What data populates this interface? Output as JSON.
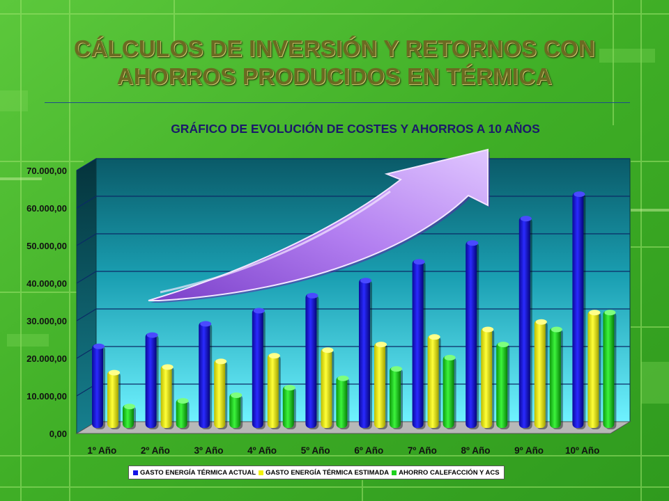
{
  "slide": {
    "title_line1": "CÁLCULOS DE INVERSIÓN Y RETORNOS CON",
    "title_line2": "AHORROS PRODUCIDOS EN TÉRMICA"
  },
  "chart_data": {
    "type": "bar",
    "title": "GRÁFICO DE EVOLUCIÓN DE COSTES Y AHORROS A 10 AÑOS",
    "categories": [
      "1º Año",
      "2º Año",
      "3º Año",
      "4º Año",
      "5º Año",
      "6º Año",
      "7º Año",
      "8º Año",
      "9º Año",
      "10º Año"
    ],
    "y_ticks": [
      "0,00",
      "10.000,00",
      "20.000,00",
      "30.000,00",
      "40.000,00",
      "50.000,00",
      "60.000,00",
      "70.000,00"
    ],
    "ylim": [
      0,
      70000
    ],
    "grid": true,
    "legend_position": "bottom",
    "series": [
      {
        "name": "GASTO ENERGÍA TÉRMICA ACTUAL",
        "color": "#1414e6",
        "values": [
          23000,
          26000,
          29000,
          32500,
          36500,
          40500,
          45500,
          50500,
          57000,
          63500
        ]
      },
      {
        "name": "GASTO ENERGÍA TÉRMICA ESTIMADA",
        "color": "#f2f20c",
        "values": [
          16000,
          17500,
          19000,
          20500,
          22000,
          23500,
          25500,
          27500,
          29500,
          32000
        ]
      },
      {
        "name": "AHORRO CALEFACCIÓN Y ACS",
        "color": "#1ed21e",
        "values": [
          7000,
          8500,
          10000,
          12000,
          14500,
          17000,
          20000,
          23500,
          27500,
          32000
        ]
      }
    ],
    "annotation_icon": "upward-trend-arrow-icon"
  }
}
